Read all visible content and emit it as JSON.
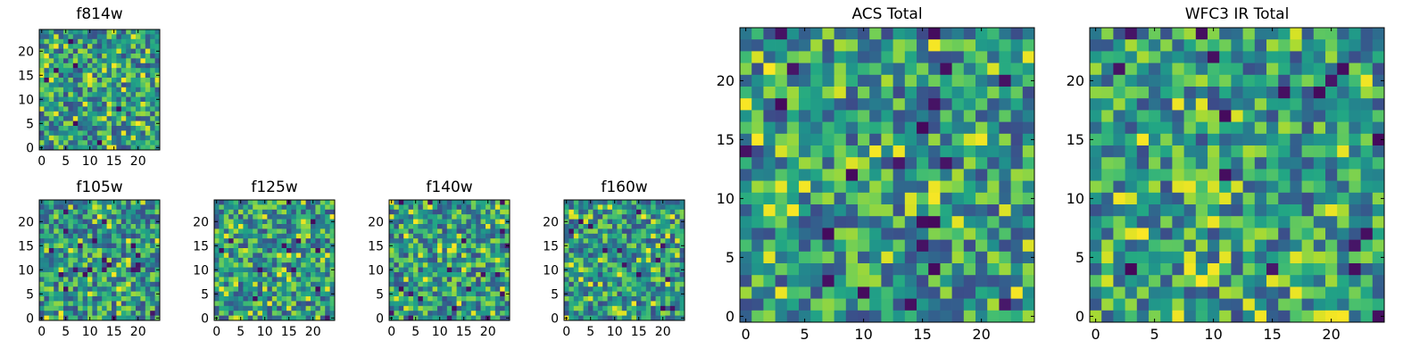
{
  "chart_data": [
    {
      "id": "f814w",
      "type": "heatmap",
      "title": "f814w",
      "grid_size": 25,
      "xlim": [
        0,
        24
      ],
      "ylim": [
        0,
        24
      ],
      "x_ticks": [
        0,
        5,
        10,
        15,
        20
      ],
      "y_ticks": [
        0,
        5,
        10,
        15,
        20
      ],
      "colormap": "viridis",
      "pattern_seed": 11
    },
    {
      "id": "f105w",
      "type": "heatmap",
      "title": "f105w",
      "grid_size": 25,
      "xlim": [
        0,
        24
      ],
      "ylim": [
        0,
        24
      ],
      "x_ticks": [
        0,
        5,
        10,
        15,
        20
      ],
      "y_ticks": [
        0,
        5,
        10,
        15,
        20
      ],
      "colormap": "viridis",
      "pattern_seed": 23
    },
    {
      "id": "f125w",
      "type": "heatmap",
      "title": "f125w",
      "grid_size": 25,
      "xlim": [
        0,
        24
      ],
      "ylim": [
        0,
        24
      ],
      "x_ticks": [
        0,
        5,
        10,
        15,
        20
      ],
      "y_ticks": [
        0,
        5,
        10,
        15,
        20
      ],
      "colormap": "viridis",
      "pattern_seed": 37
    },
    {
      "id": "f140w",
      "type": "heatmap",
      "title": "f140w",
      "grid_size": 25,
      "xlim": [
        0,
        24
      ],
      "ylim": [
        0,
        24
      ],
      "x_ticks": [
        0,
        5,
        10,
        15,
        20
      ],
      "y_ticks": [
        0,
        5,
        10,
        15,
        20
      ],
      "colormap": "viridis",
      "pattern_seed": 41
    },
    {
      "id": "f160w",
      "type": "heatmap",
      "title": "f160w",
      "grid_size": 25,
      "xlim": [
        0,
        24
      ],
      "ylim": [
        0,
        24
      ],
      "x_ticks": [
        0,
        5,
        10,
        15,
        20
      ],
      "y_ticks": [
        0,
        5,
        10,
        15,
        20
      ],
      "colormap": "viridis",
      "pattern_seed": 53
    },
    {
      "id": "acs_total",
      "type": "heatmap",
      "title": "ACS Total",
      "grid_size": 25,
      "xlim": [
        0,
        24
      ],
      "ylim": [
        0,
        24
      ],
      "x_ticks": [
        0,
        5,
        10,
        15,
        20
      ],
      "y_ticks": [
        0,
        5,
        10,
        15,
        20
      ],
      "colormap": "viridis",
      "pattern_seed": 67
    },
    {
      "id": "wfc3_ir_total",
      "type": "heatmap",
      "title": "WFC3 IR Total",
      "grid_size": 25,
      "xlim": [
        0,
        24
      ],
      "ylim": [
        0,
        24
      ],
      "x_ticks": [
        0,
        5,
        10,
        15,
        20
      ],
      "y_ticks": [
        0,
        5,
        10,
        15,
        20
      ],
      "colormap": "viridis",
      "pattern_seed": 79
    }
  ]
}
